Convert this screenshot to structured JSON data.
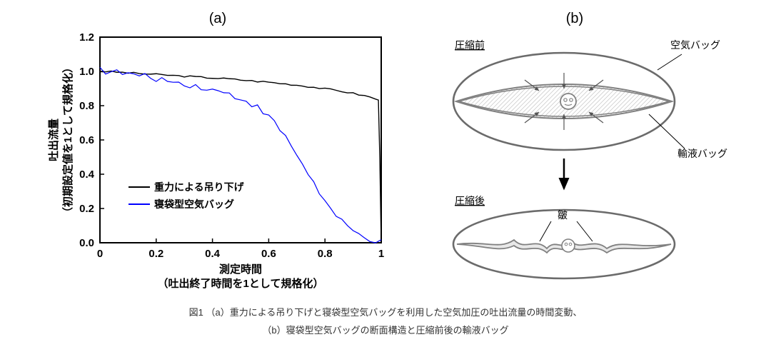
{
  "panel_a_label": "(a)",
  "panel_b_label": "(b)",
  "caption_line1": "図1 （a）重力による吊り下げと寝袋型空気バッグを利用した空気加圧の吐出流量の時間変動、",
  "caption_line2": "（b）寝袋型空気バッグの断面構造と圧縮前後の輸液バッグ",
  "chart": {
    "type": "line",
    "background_color": "#ffffff",
    "plot_border_color": "#000000",
    "plot_border_width": 2,
    "axis_font_size": 15,
    "tick_font_size": 15,
    "font_weight": "bold",
    "xlabel_line1": "測定時間",
    "xlabel_line2": "（吐出終了時間を1として規格化）",
    "ylabel_line1": "吐出流量",
    "ylabel_line2": "（初期設定値を1として規格化）",
    "xlim": [
      0,
      1
    ],
    "ylim": [
      0,
      1.2
    ],
    "xticks": [
      0,
      0.2,
      0.4,
      0.6,
      0.8,
      1
    ],
    "yticks": [
      0.0,
      0.2,
      0.4,
      0.6,
      0.8,
      1.0,
      1.2
    ],
    "xtick_labels": [
      "0",
      "0.2",
      "0.4",
      "0.6",
      "0.8",
      "1"
    ],
    "ytick_labels": [
      "0.0",
      "0.2",
      "0.4",
      "0.6",
      "0.8",
      "1.0",
      "1.2"
    ],
    "grid": false,
    "legend": {
      "position": "inside-lower-left",
      "items": [
        {
          "label": "重力による吊り下げ",
          "color": "#000000"
        },
        {
          "label": "寝袋型空気バッグ",
          "color": "#0000ff"
        }
      ],
      "font_size": 14,
      "border": false
    },
    "series": [
      {
        "name": "gravity",
        "color": "#000000",
        "line_width": 1.4,
        "noise": 0.005,
        "data": [
          [
            0.0,
            1.0
          ],
          [
            0.02,
            1.0
          ],
          [
            0.04,
            0.998
          ],
          [
            0.06,
            0.996
          ],
          [
            0.08,
            0.994
          ],
          [
            0.1,
            0.992
          ],
          [
            0.12,
            0.99
          ],
          [
            0.14,
            0.988
          ],
          [
            0.16,
            0.986
          ],
          [
            0.18,
            0.984
          ],
          [
            0.2,
            0.982
          ],
          [
            0.22,
            0.98
          ],
          [
            0.24,
            0.978
          ],
          [
            0.26,
            0.976
          ],
          [
            0.28,
            0.974
          ],
          [
            0.3,
            0.972
          ],
          [
            0.32,
            0.97
          ],
          [
            0.34,
            0.968
          ],
          [
            0.36,
            0.966
          ],
          [
            0.38,
            0.964
          ],
          [
            0.4,
            0.962
          ],
          [
            0.42,
            0.96
          ],
          [
            0.44,
            0.958
          ],
          [
            0.46,
            0.956
          ],
          [
            0.48,
            0.953
          ],
          [
            0.5,
            0.95
          ],
          [
            0.52,
            0.948
          ],
          [
            0.54,
            0.945
          ],
          [
            0.56,
            0.942
          ],
          [
            0.58,
            0.94
          ],
          [
            0.6,
            0.937
          ],
          [
            0.62,
            0.934
          ],
          [
            0.64,
            0.93
          ],
          [
            0.66,
            0.927
          ],
          [
            0.68,
            0.924
          ],
          [
            0.7,
            0.92
          ],
          [
            0.72,
            0.916
          ],
          [
            0.74,
            0.912
          ],
          [
            0.76,
            0.908
          ],
          [
            0.78,
            0.903
          ],
          [
            0.8,
            0.898
          ],
          [
            0.82,
            0.894
          ],
          [
            0.84,
            0.889
          ],
          [
            0.86,
            0.884
          ],
          [
            0.88,
            0.878
          ],
          [
            0.9,
            0.872
          ],
          [
            0.92,
            0.865
          ],
          [
            0.94,
            0.858
          ],
          [
            0.96,
            0.85
          ],
          [
            0.98,
            0.84
          ],
          [
            0.99,
            0.83
          ],
          [
            0.995,
            0.5
          ],
          [
            1.0,
            0.0
          ]
        ]
      },
      {
        "name": "airbag",
        "color": "#0000ff",
        "line_width": 1.2,
        "noise": 0.018,
        "data": [
          [
            0.0,
            1.02
          ],
          [
            0.02,
            1.0
          ],
          [
            0.04,
            0.998
          ],
          [
            0.06,
            0.995
          ],
          [
            0.08,
            0.99
          ],
          [
            0.1,
            0.985
          ],
          [
            0.12,
            0.98
          ],
          [
            0.14,
            0.975
          ],
          [
            0.16,
            0.97
          ],
          [
            0.18,
            0.965
          ],
          [
            0.2,
            0.958
          ],
          [
            0.22,
            0.952
          ],
          [
            0.24,
            0.946
          ],
          [
            0.26,
            0.94
          ],
          [
            0.28,
            0.934
          ],
          [
            0.3,
            0.928
          ],
          [
            0.32,
            0.922
          ],
          [
            0.34,
            0.915
          ],
          [
            0.36,
            0.908
          ],
          [
            0.38,
            0.9
          ],
          [
            0.4,
            0.892
          ],
          [
            0.42,
            0.884
          ],
          [
            0.44,
            0.875
          ],
          [
            0.46,
            0.866
          ],
          [
            0.48,
            0.855
          ],
          [
            0.5,
            0.842
          ],
          [
            0.52,
            0.828
          ],
          [
            0.54,
            0.81
          ],
          [
            0.56,
            0.79
          ],
          [
            0.58,
            0.765
          ],
          [
            0.6,
            0.735
          ],
          [
            0.62,
            0.7
          ],
          [
            0.64,
            0.66
          ],
          [
            0.66,
            0.615
          ],
          [
            0.68,
            0.565
          ],
          [
            0.7,
            0.515
          ],
          [
            0.72,
            0.46
          ],
          [
            0.74,
            0.405
          ],
          [
            0.76,
            0.35
          ],
          [
            0.78,
            0.295
          ],
          [
            0.8,
            0.24
          ],
          [
            0.82,
            0.195
          ],
          [
            0.84,
            0.155
          ],
          [
            0.86,
            0.12
          ],
          [
            0.88,
            0.09
          ],
          [
            0.9,
            0.066
          ],
          [
            0.92,
            0.047
          ],
          [
            0.94,
            0.032
          ],
          [
            0.96,
            0.02
          ],
          [
            0.98,
            0.01
          ],
          [
            1.0,
            0.0
          ]
        ]
      }
    ]
  },
  "diagram": {
    "label_before": "圧縮前",
    "label_after": "圧縮後",
    "label_airbag": "空気バッグ",
    "label_liquidbag": "輸液バッグ",
    "label_wrinkle": "皺",
    "outer_stroke": "#6b6b6b",
    "outer_stroke_width": 2.6,
    "inner_fill_pattern_color": "#cfcfcf",
    "inner_bag_stroke": "#808080",
    "inner_bag_fill": "#e8e8e8",
    "arrow_color": "#000000",
    "label_font_size": 14,
    "leader_color": "#000000"
  }
}
